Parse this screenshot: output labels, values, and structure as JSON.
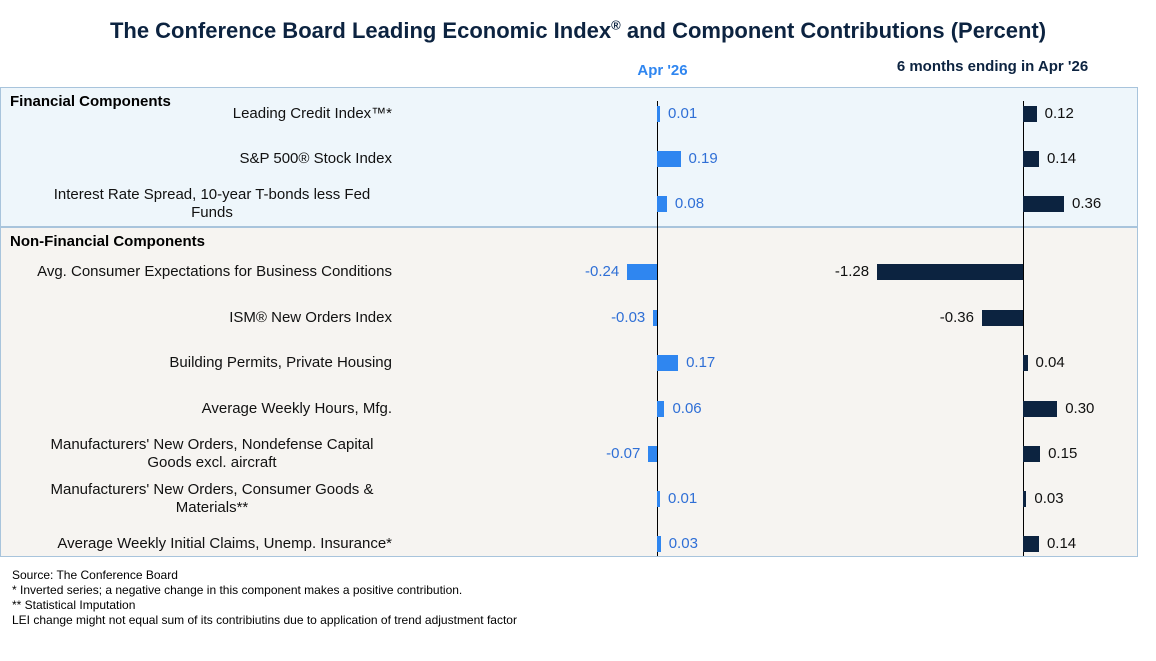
{
  "title": {
    "main": "The Conference Board Leading Economic Index",
    "mark": "®",
    "tail": " and Component Contributions (Percent)"
  },
  "columns": {
    "month": "Apr  '26",
    "six_month": "6 months ending in Apr  '26"
  },
  "groups": {
    "financial": "Financial Components",
    "non_financial": "Non-Financial Components"
  },
  "colors": {
    "month_bar": "#2f86f0",
    "six_month_bar": "#0c2340"
  },
  "chart_data": {
    "type": "bar",
    "orientation": "horizontal",
    "categories": [
      "Leading Credit Index™*",
      "S&P 500® Stock Index",
      "Interest Rate Spread, 10-year T-bonds less Fed Funds",
      "Avg. Consumer Expectations for Business Conditions",
      "ISM® New Orders Index",
      "Building Permits, Private Housing",
      "Average Weekly Hours, Mfg.",
      "Manufacturers' New Orders, Nondefense Capital Goods excl. aircraft",
      "Manufacturers' New Orders, Consumer Goods & Materials**",
      "Average Weekly Initial Claims, Unemp. Insurance*"
    ],
    "series": [
      {
        "name": "Apr  '26",
        "values": [
          0.01,
          0.19,
          0.08,
          -0.24,
          -0.03,
          0.17,
          0.06,
          -0.07,
          0.01,
          0.03
        ],
        "labels": [
          "0.01",
          "0.19",
          "0.08",
          "-0.24",
          "-0.03",
          "0.17",
          "0.06",
          "-0.07",
          "0.01",
          "0.03"
        ]
      },
      {
        "name": "6 months ending in Apr  '26",
        "values": [
          0.12,
          0.14,
          0.36,
          -1.28,
          -0.36,
          0.04,
          0.3,
          0.15,
          0.03,
          0.14
        ],
        "labels": [
          "0.12",
          "0.14",
          "0.36",
          "-1.28",
          "-0.36",
          "0.04",
          "0.30",
          "0.15",
          "0.03",
          "0.14"
        ]
      }
    ],
    "grid": false,
    "legend": "none"
  },
  "footnotes": [
    "Source: The Conference Board",
    "*  Inverted series; a negative change in this component makes a positive contribution.",
    "**  Statistical Imputation",
    "LEI change might not equal sum of its contribiutins due to application of trend adjustment factor"
  ]
}
